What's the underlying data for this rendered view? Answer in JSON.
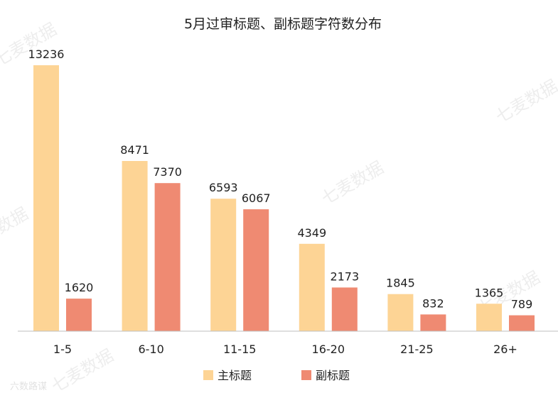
{
  "colors": {
    "main": "#FDD495",
    "sub": "#EF8A72",
    "axis": "#BFBFBF"
  },
  "watermarks": {
    "brand": "七麦数据",
    "corner": "六数路谋"
  },
  "chart_data": {
    "type": "bar",
    "title": "5月过审标题、副标题字符数分布",
    "categories": [
      "1-5",
      "6-10",
      "11-15",
      "16-20",
      "21-25",
      "26+"
    ],
    "series": [
      {
        "name": "主标题",
        "values": [
          13236,
          8471,
          6593,
          4349,
          1845,
          1365
        ]
      },
      {
        "name": "副标题",
        "values": [
          1620,
          7370,
          6067,
          2173,
          832,
          789
        ]
      }
    ],
    "ylim": [
      0,
      13236
    ],
    "grid": false,
    "legend": "bottom"
  }
}
